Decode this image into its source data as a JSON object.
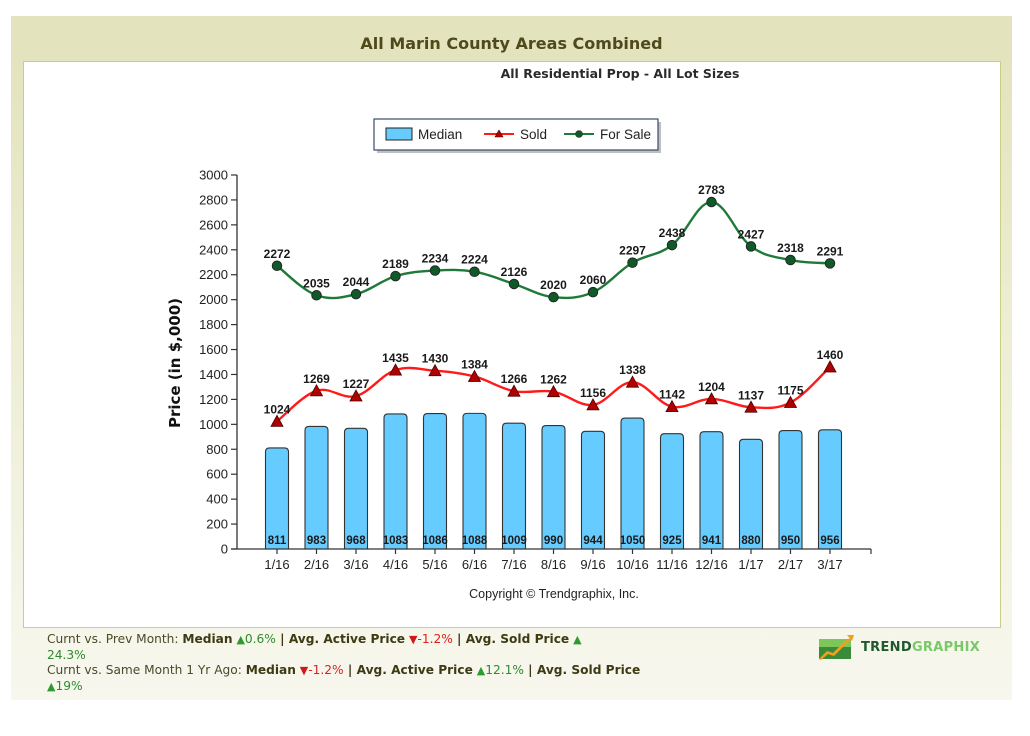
{
  "page": {
    "title": "All Marin County Areas Combined"
  },
  "chart_data": {
    "type": "bar",
    "title": "All Residential Prop - All Lot Sizes",
    "xlabel": "",
    "ylabel": "Price (in $,000)",
    "ylim": [
      0,
      3000
    ],
    "yticks": [
      0,
      200,
      400,
      600,
      800,
      1000,
      1200,
      1400,
      1600,
      1800,
      2000,
      2200,
      2400,
      2600,
      2800,
      3000
    ],
    "grid": false,
    "legend_position": "top-center",
    "categories": [
      "1/16",
      "2/16",
      "3/16",
      "4/16",
      "5/16",
      "6/16",
      "7/16",
      "8/16",
      "9/16",
      "10/16",
      "11/16",
      "12/16",
      "1/17",
      "2/17",
      "3/17"
    ],
    "series": [
      {
        "name": "Median",
        "type": "bar",
        "color": "#66ccff",
        "values": [
          811,
          983,
          968,
          1083,
          1086,
          1088,
          1009,
          990,
          944,
          1050,
          925,
          941,
          880,
          950,
          956
        ]
      },
      {
        "name": "Sold",
        "type": "line",
        "marker": "triangle",
        "color": "#ff1a1a",
        "marker_color": "#b00000",
        "values": [
          1024,
          1269,
          1227,
          1435,
          1430,
          1384,
          1266,
          1262,
          1156,
          1338,
          1142,
          1204,
          1137,
          1175,
          1460
        ]
      },
      {
        "name": "For Sale",
        "type": "line",
        "marker": "circle",
        "color": "#1f7a3a",
        "marker_color": "#0f5a28",
        "values": [
          2272,
          2035,
          2044,
          2189,
          2234,
          2224,
          2126,
          2020,
          2060,
          2297,
          2438,
          2783,
          2427,
          2318,
          2291
        ]
      }
    ],
    "annotation": "Copyright © Trendgraphix, Inc."
  },
  "stats": {
    "line1": {
      "prefix": "Curnt vs. Prev Month: ",
      "items": [
        {
          "label": "Median",
          "direction": "up",
          "value": "0.6%"
        },
        {
          "label": "Avg. Active Price",
          "direction": "down",
          "value": "-1.2%"
        },
        {
          "label": "Avg. Sold Price",
          "direction": "up",
          "value": "24.3%"
        }
      ]
    },
    "line2": {
      "prefix": "Curnt vs. Same Month 1 Yr Ago: ",
      "items": [
        {
          "label": "Median",
          "direction": "down",
          "value": "-1.2%"
        },
        {
          "label": "Avg. Active Price",
          "direction": "up",
          "value": "12.1%"
        },
        {
          "label": "Avg. Sold Price",
          "direction": "up",
          "value": "19%"
        }
      ]
    },
    "separator": " | "
  },
  "logo": {
    "part1": "TREND",
    "part2": "GRAPHIX",
    "icon": "trend-chart-logo-icon"
  },
  "icons": {
    "up": "▲",
    "down": "▼"
  }
}
